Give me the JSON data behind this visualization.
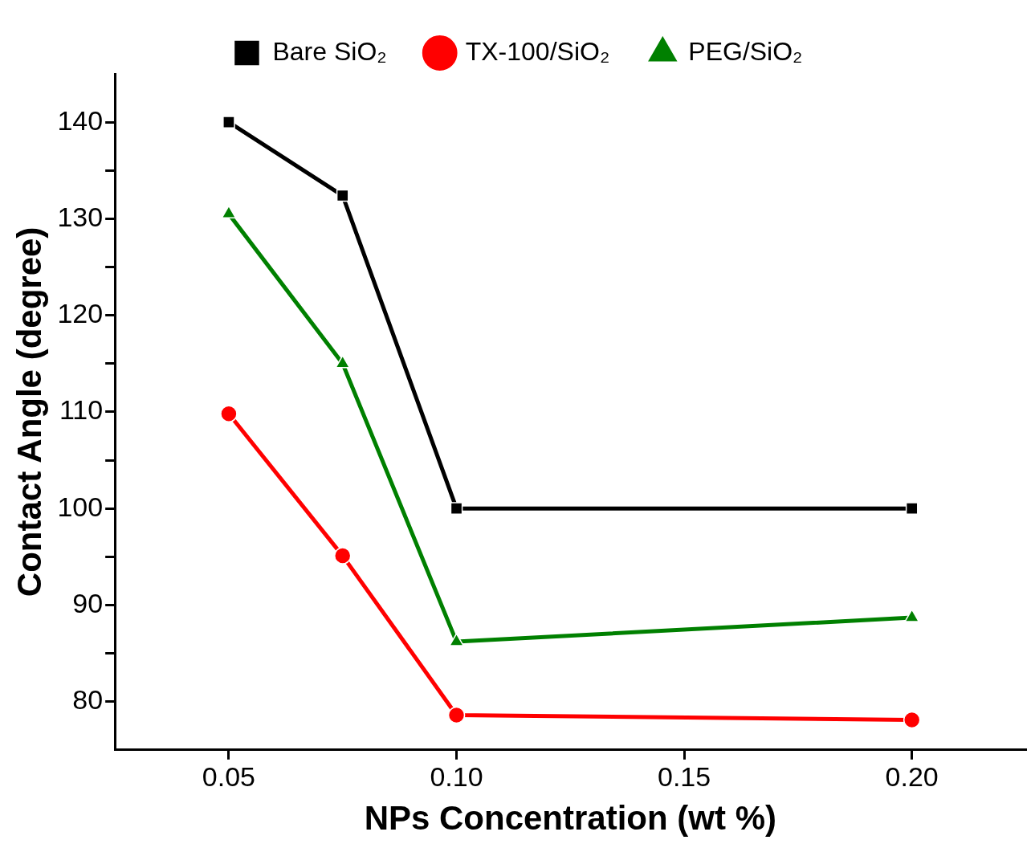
{
  "chart_data": {
    "type": "line",
    "xlabel": "NPs Concentration (wt %)",
    "ylabel": "Contact Angle (degree)",
    "x": [
      0.05,
      0.075,
      0.1,
      0.2
    ],
    "xlim": [
      0.025,
      0.225
    ],
    "xticks": [
      {
        "value": 0.05,
        "label": "0.05"
      },
      {
        "value": 0.1,
        "label": "0.10"
      },
      {
        "value": 0.15,
        "label": "0.15"
      },
      {
        "value": 0.2,
        "label": "0.20"
      }
    ],
    "ylim": [
      75,
      145
    ],
    "yticks": [
      80,
      {
        "value": 85,
        "label": null
      },
      90,
      {
        "value": 95,
        "label": null
      },
      100,
      {
        "value": 105,
        "label": null
      },
      110,
      {
        "value": 115,
        "label": null
      },
      120,
      {
        "value": 125,
        "label": null
      },
      130,
      {
        "value": 135,
        "label": null
      },
      140
    ],
    "legend": "top",
    "series": [
      {
        "name": "Bare SiO₂",
        "color": "#000000",
        "marker": "square",
        "values": [
          140,
          132.4,
          100,
          100
        ]
      },
      {
        "name": "TX-100/SiO₂",
        "color": "#ff0000",
        "marker": "circle",
        "values": [
          109.8,
          95.1,
          78.6,
          78.1
        ]
      },
      {
        "name": "PEG/SiO₂",
        "color": "#008000",
        "marker": "triangle",
        "values": [
          130.5,
          115.0,
          86.2,
          88.7
        ]
      }
    ]
  }
}
